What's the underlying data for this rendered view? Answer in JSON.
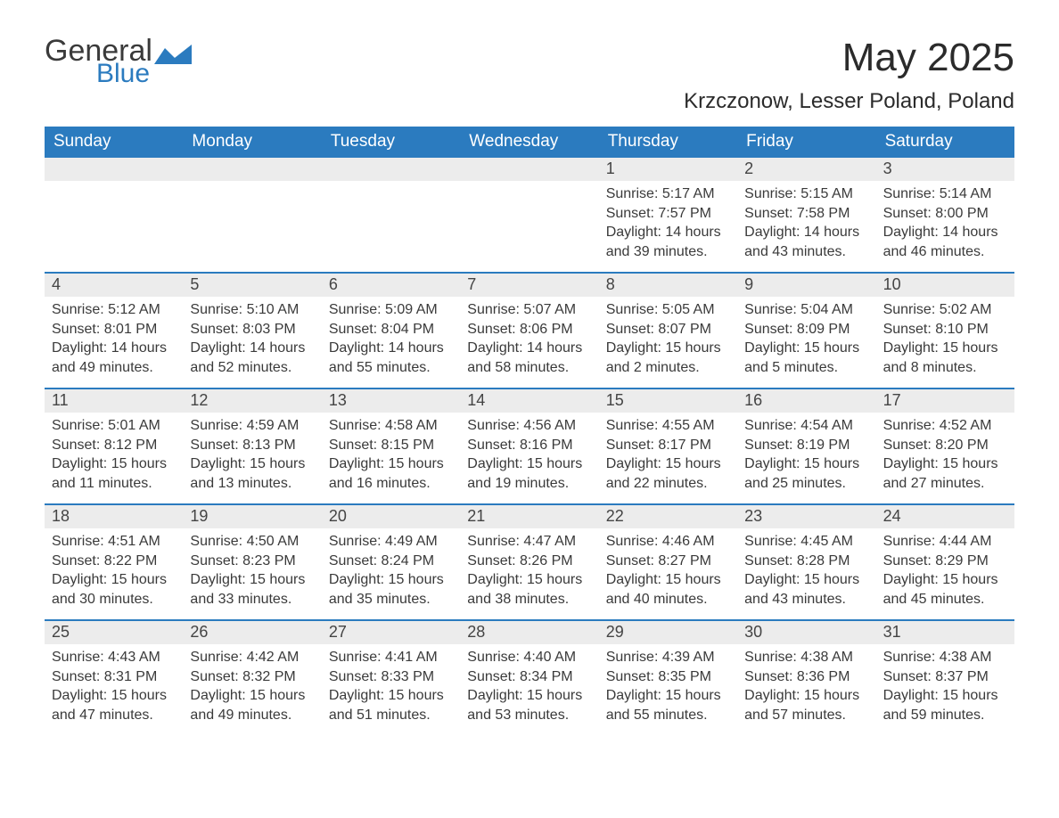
{
  "brand": {
    "word1": "General",
    "word2": "Blue",
    "text_color": "#3a3a3a",
    "accent_color": "#2b7bbf"
  },
  "title": "May 2025",
  "location": "Krzczonow, Lesser Poland, Poland",
  "colors": {
    "header_bg": "#2b7bbf",
    "header_text": "#ffffff",
    "daybar_bg": "#ececec",
    "row_border": "#2b7bbf",
    "body_text": "#3a3a3a",
    "background": "#ffffff"
  },
  "weekdays": [
    "Sunday",
    "Monday",
    "Tuesday",
    "Wednesday",
    "Thursday",
    "Friday",
    "Saturday"
  ],
  "weeks": [
    [
      {
        "day": "",
        "sunrise": "",
        "sunset": "",
        "daylight": ""
      },
      {
        "day": "",
        "sunrise": "",
        "sunset": "",
        "daylight": ""
      },
      {
        "day": "",
        "sunrise": "",
        "sunset": "",
        "daylight": ""
      },
      {
        "day": "",
        "sunrise": "",
        "sunset": "",
        "daylight": ""
      },
      {
        "day": "1",
        "sunrise": "Sunrise: 5:17 AM",
        "sunset": "Sunset: 7:57 PM",
        "daylight": "Daylight: 14 hours and 39 minutes."
      },
      {
        "day": "2",
        "sunrise": "Sunrise: 5:15 AM",
        "sunset": "Sunset: 7:58 PM",
        "daylight": "Daylight: 14 hours and 43 minutes."
      },
      {
        "day": "3",
        "sunrise": "Sunrise: 5:14 AM",
        "sunset": "Sunset: 8:00 PM",
        "daylight": "Daylight: 14 hours and 46 minutes."
      }
    ],
    [
      {
        "day": "4",
        "sunrise": "Sunrise: 5:12 AM",
        "sunset": "Sunset: 8:01 PM",
        "daylight": "Daylight: 14 hours and 49 minutes."
      },
      {
        "day": "5",
        "sunrise": "Sunrise: 5:10 AM",
        "sunset": "Sunset: 8:03 PM",
        "daylight": "Daylight: 14 hours and 52 minutes."
      },
      {
        "day": "6",
        "sunrise": "Sunrise: 5:09 AM",
        "sunset": "Sunset: 8:04 PM",
        "daylight": "Daylight: 14 hours and 55 minutes."
      },
      {
        "day": "7",
        "sunrise": "Sunrise: 5:07 AM",
        "sunset": "Sunset: 8:06 PM",
        "daylight": "Daylight: 14 hours and 58 minutes."
      },
      {
        "day": "8",
        "sunrise": "Sunrise: 5:05 AM",
        "sunset": "Sunset: 8:07 PM",
        "daylight": "Daylight: 15 hours and 2 minutes."
      },
      {
        "day": "9",
        "sunrise": "Sunrise: 5:04 AM",
        "sunset": "Sunset: 8:09 PM",
        "daylight": "Daylight: 15 hours and 5 minutes."
      },
      {
        "day": "10",
        "sunrise": "Sunrise: 5:02 AM",
        "sunset": "Sunset: 8:10 PM",
        "daylight": "Daylight: 15 hours and 8 minutes."
      }
    ],
    [
      {
        "day": "11",
        "sunrise": "Sunrise: 5:01 AM",
        "sunset": "Sunset: 8:12 PM",
        "daylight": "Daylight: 15 hours and 11 minutes."
      },
      {
        "day": "12",
        "sunrise": "Sunrise: 4:59 AM",
        "sunset": "Sunset: 8:13 PM",
        "daylight": "Daylight: 15 hours and 13 minutes."
      },
      {
        "day": "13",
        "sunrise": "Sunrise: 4:58 AM",
        "sunset": "Sunset: 8:15 PM",
        "daylight": "Daylight: 15 hours and 16 minutes."
      },
      {
        "day": "14",
        "sunrise": "Sunrise: 4:56 AM",
        "sunset": "Sunset: 8:16 PM",
        "daylight": "Daylight: 15 hours and 19 minutes."
      },
      {
        "day": "15",
        "sunrise": "Sunrise: 4:55 AM",
        "sunset": "Sunset: 8:17 PM",
        "daylight": "Daylight: 15 hours and 22 minutes."
      },
      {
        "day": "16",
        "sunrise": "Sunrise: 4:54 AM",
        "sunset": "Sunset: 8:19 PM",
        "daylight": "Daylight: 15 hours and 25 minutes."
      },
      {
        "day": "17",
        "sunrise": "Sunrise: 4:52 AM",
        "sunset": "Sunset: 8:20 PM",
        "daylight": "Daylight: 15 hours and 27 minutes."
      }
    ],
    [
      {
        "day": "18",
        "sunrise": "Sunrise: 4:51 AM",
        "sunset": "Sunset: 8:22 PM",
        "daylight": "Daylight: 15 hours and 30 minutes."
      },
      {
        "day": "19",
        "sunrise": "Sunrise: 4:50 AM",
        "sunset": "Sunset: 8:23 PM",
        "daylight": "Daylight: 15 hours and 33 minutes."
      },
      {
        "day": "20",
        "sunrise": "Sunrise: 4:49 AM",
        "sunset": "Sunset: 8:24 PM",
        "daylight": "Daylight: 15 hours and 35 minutes."
      },
      {
        "day": "21",
        "sunrise": "Sunrise: 4:47 AM",
        "sunset": "Sunset: 8:26 PM",
        "daylight": "Daylight: 15 hours and 38 minutes."
      },
      {
        "day": "22",
        "sunrise": "Sunrise: 4:46 AM",
        "sunset": "Sunset: 8:27 PM",
        "daylight": "Daylight: 15 hours and 40 minutes."
      },
      {
        "day": "23",
        "sunrise": "Sunrise: 4:45 AM",
        "sunset": "Sunset: 8:28 PM",
        "daylight": "Daylight: 15 hours and 43 minutes."
      },
      {
        "day": "24",
        "sunrise": "Sunrise: 4:44 AM",
        "sunset": "Sunset: 8:29 PM",
        "daylight": "Daylight: 15 hours and 45 minutes."
      }
    ],
    [
      {
        "day": "25",
        "sunrise": "Sunrise: 4:43 AM",
        "sunset": "Sunset: 8:31 PM",
        "daylight": "Daylight: 15 hours and 47 minutes."
      },
      {
        "day": "26",
        "sunrise": "Sunrise: 4:42 AM",
        "sunset": "Sunset: 8:32 PM",
        "daylight": "Daylight: 15 hours and 49 minutes."
      },
      {
        "day": "27",
        "sunrise": "Sunrise: 4:41 AM",
        "sunset": "Sunset: 8:33 PM",
        "daylight": "Daylight: 15 hours and 51 minutes."
      },
      {
        "day": "28",
        "sunrise": "Sunrise: 4:40 AM",
        "sunset": "Sunset: 8:34 PM",
        "daylight": "Daylight: 15 hours and 53 minutes."
      },
      {
        "day": "29",
        "sunrise": "Sunrise: 4:39 AM",
        "sunset": "Sunset: 8:35 PM",
        "daylight": "Daylight: 15 hours and 55 minutes."
      },
      {
        "day": "30",
        "sunrise": "Sunrise: 4:38 AM",
        "sunset": "Sunset: 8:36 PM",
        "daylight": "Daylight: 15 hours and 57 minutes."
      },
      {
        "day": "31",
        "sunrise": "Sunrise: 4:38 AM",
        "sunset": "Sunset: 8:37 PM",
        "daylight": "Daylight: 15 hours and 59 minutes."
      }
    ]
  ]
}
